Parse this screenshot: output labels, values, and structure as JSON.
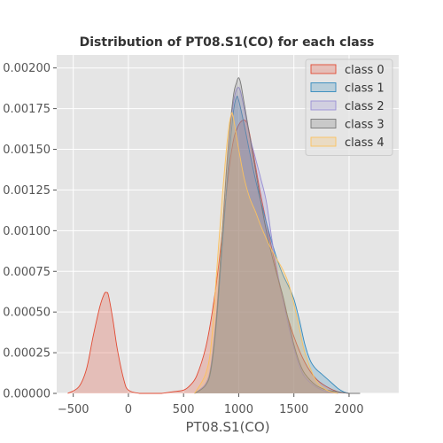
{
  "chart_data": {
    "type": "area",
    "title": "Distribution of PT08.S1(CO) for each class",
    "xlabel": "PT08.S1(CO)",
    "ylabel": "",
    "xlim": [
      -650,
      2450
    ],
    "ylim": [
      0,
      0.00208
    ],
    "x_ticks": [
      -500,
      0,
      500,
      1000,
      1500,
      2000
    ],
    "x_tick_labels": [
      "−500",
      "0",
      "500",
      "1000",
      "1500",
      "2000"
    ],
    "y_ticks": [
      0,
      0.00025,
      0.0005,
      0.00075,
      0.001,
      0.00125,
      0.0015,
      0.00175,
      0.002
    ],
    "y_tick_labels": [
      "0.00000",
      "0.00025",
      "0.00050",
      "0.00075",
      "0.00100",
      "0.00125",
      "0.00150",
      "0.00175",
      "0.00200"
    ],
    "grid": true,
    "legend_position": "top-right",
    "series": [
      {
        "name": "class 0",
        "color": "#e24a33",
        "x": [
          -550,
          -450,
          -380,
          -320,
          -260,
          -220,
          -200,
          -180,
          -140,
          -100,
          -40,
          0,
          100,
          200,
          300,
          400,
          500,
          560,
          620,
          700,
          760,
          820,
          880,
          920,
          960,
          1000,
          1020,
          1050,
          1080,
          1120,
          1200,
          1300,
          1400,
          1500,
          1600,
          1700,
          1800,
          1900,
          2000
        ],
        "y": [
          0,
          4e-05,
          0.00015,
          0.00035,
          0.00053,
          0.00061,
          0.00062,
          0.0006,
          0.00045,
          0.00027,
          8e-05,
          2e-05,
          0,
          0,
          0,
          1e-05,
          2e-05,
          5e-05,
          0.00011,
          0.00028,
          0.0005,
          0.0008,
          0.00118,
          0.00142,
          0.00158,
          0.00165,
          0.00167,
          0.00168,
          0.00165,
          0.00152,
          0.00122,
          0.00089,
          0.00058,
          0.00035,
          0.00019,
          9e-05,
          4e-05,
          1e-05,
          0
        ]
      },
      {
        "name": "class 1",
        "color": "#348abd",
        "x": [
          600,
          700,
          750,
          800,
          850,
          900,
          950,
          980,
          1000,
          1050,
          1100,
          1150,
          1200,
          1250,
          1300,
          1350,
          1400,
          1450,
          1500,
          1550,
          1600,
          1650,
          1700,
          1750,
          1800,
          1850,
          1900,
          1950,
          2000
        ],
        "y": [
          0,
          5e-05,
          0.00015,
          0.00045,
          0.0009,
          0.00135,
          0.00172,
          0.00182,
          0.0018,
          0.00165,
          0.00148,
          0.00132,
          0.00118,
          0.00105,
          0.00093,
          0.00082,
          0.00073,
          0.00066,
          0.00058,
          0.00045,
          0.0003,
          0.0002,
          0.00015,
          0.00012,
          9e-05,
          6e-05,
          3e-05,
          1e-05,
          0
        ]
      },
      {
        "name": "class 2",
        "color": "#988ed5",
        "x": [
          600,
          700,
          750,
          800,
          850,
          900,
          950,
          1000,
          1050,
          1100,
          1150,
          1200,
          1250,
          1300,
          1350,
          1400,
          1450,
          1500,
          1550,
          1600,
          1700,
          1800,
          1900
        ],
        "y": [
          0,
          6e-05,
          0.00018,
          0.0005,
          0.00098,
          0.00145,
          0.00178,
          0.00188,
          0.00175,
          0.00158,
          0.00145,
          0.00132,
          0.00118,
          0.00095,
          0.00075,
          0.00058,
          0.00042,
          0.00028,
          0.00017,
          0.0001,
          4e-05,
          1e-05,
          0
        ]
      },
      {
        "name": "class 3",
        "color": "#777777",
        "x": [
          600,
          700,
          750,
          800,
          850,
          900,
          950,
          980,
          1000,
          1020,
          1050,
          1100,
          1150,
          1200,
          1250,
          1300,
          1350,
          1400,
          1450,
          1500,
          1550,
          1600,
          1700,
          1800,
          1900,
          2000,
          2100
        ],
        "y": [
          0,
          5e-05,
          0.00016,
          0.00048,
          0.00098,
          0.00148,
          0.00182,
          0.00191,
          0.00194,
          0.0019,
          0.00178,
          0.00158,
          0.00138,
          0.00118,
          0.001,
          0.00085,
          0.00072,
          0.0006,
          0.00045,
          0.0003,
          0.00019,
          0.00012,
          5e-05,
          2e-05,
          1e-05,
          0,
          0
        ]
      },
      {
        "name": "class 4",
        "color": "#fbc15e",
        "x": [
          600,
          700,
          750,
          800,
          850,
          900,
          930,
          950,
          1000,
          1050,
          1100,
          1150,
          1200,
          1250,
          1300,
          1350,
          1400,
          1450,
          1500,
          1550,
          1600,
          1700,
          1800,
          1900
        ],
        "y": [
          0,
          0.00012,
          0.0003,
          0.00075,
          0.0012,
          0.00158,
          0.00171,
          0.0017,
          0.0015,
          0.00132,
          0.0012,
          0.00112,
          0.00103,
          0.00095,
          0.00088,
          0.00082,
          0.00076,
          0.00068,
          0.00055,
          0.0004,
          0.00025,
          8e-05,
          2e-05,
          0
        ]
      }
    ]
  }
}
